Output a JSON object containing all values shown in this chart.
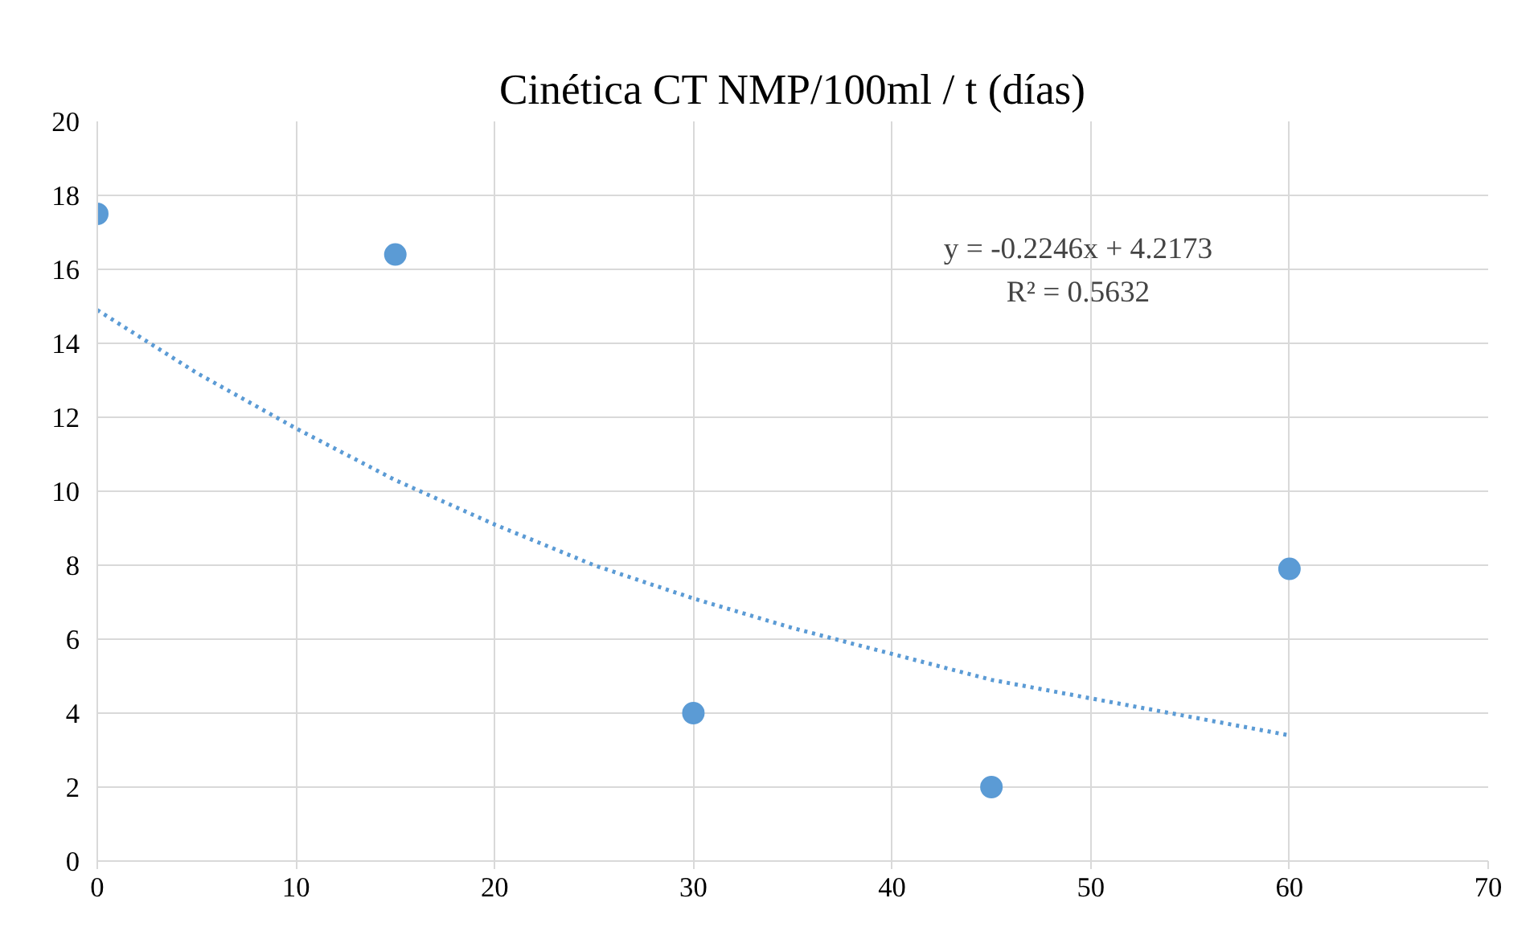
{
  "chart_data": {
    "type": "scatter",
    "title": "Cinética CT NMP/100ml / t (días)",
    "x": [
      0,
      15,
      30,
      45,
      60
    ],
    "series": [
      {
        "color": "#5b9bd5",
        "values": [
          17.5,
          16.4,
          4.0,
          2.0,
          7.9
        ],
        "marker": "circle"
      },
      {
        "type": "line",
        "color": "#5b9bd5",
        "line_style": "dotted",
        "marker": "none",
        "x": [
          0,
          5,
          10,
          15,
          20,
          25,
          30,
          35,
          40,
          45,
          50,
          55,
          60
        ],
        "values": [
          14.9,
          13.2,
          11.7,
          10.3,
          9.1,
          8.0,
          7.1,
          6.3,
          5.6,
          4.9,
          4.4,
          3.9,
          3.4
        ]
      }
    ],
    "annotations": [
      "y = -0.2246x + 4.2173",
      "R² = 0.5632"
    ],
    "xlim": [
      0,
      70
    ],
    "xticks": [
      0,
      10,
      20,
      30,
      40,
      50,
      60,
      70
    ],
    "ylim": [
      0,
      20
    ],
    "yticks": [
      0,
      2,
      4,
      6,
      8,
      10,
      12,
      14,
      16,
      18,
      20
    ],
    "grid": true
  }
}
